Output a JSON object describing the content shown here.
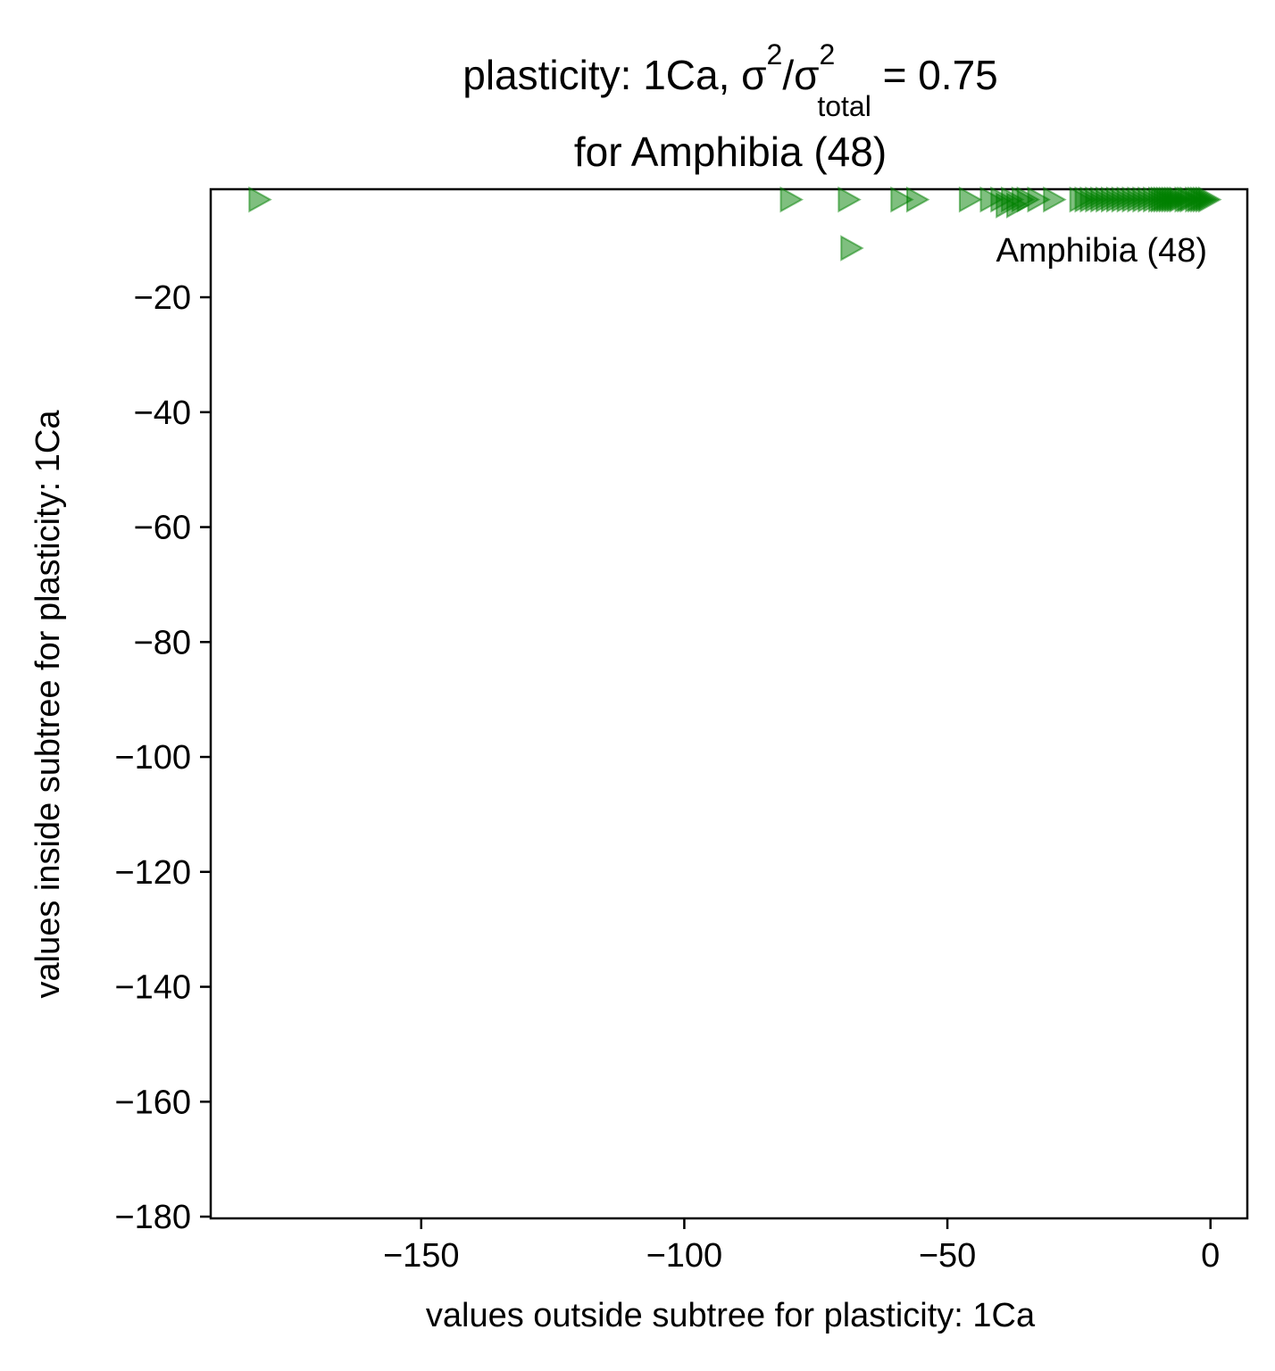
{
  "chart_data": {
    "type": "scatter",
    "title": {
      "line1_prefix": "plasticity: 1Ca, σ",
      "sup1": "2",
      "mid": "/σ",
      "sup2": "2",
      "sub": "total",
      "suffix": " =  0.75",
      "line2": "for Amphibia (48)"
    },
    "xlabel": "values outside subtree for plasticity: 1Ca",
    "ylabel": "values inside subtree for plasticity: 1Ca",
    "xlim": [
      -190,
      7
    ],
    "ylim": [
      -180.3,
      -1.2
    ],
    "xticks": [
      -150,
      -100,
      -50,
      0
    ],
    "xtick_labels": [
      "−150",
      "−100",
      "−50",
      "0"
    ],
    "yticks": [
      -20,
      -40,
      -60,
      -80,
      -100,
      -120,
      -140,
      -160,
      -180
    ],
    "ytick_labels": [
      "−20",
      "−40",
      "−60",
      "−80",
      "−100",
      "−120",
      "−140",
      "−160",
      "−180"
    ],
    "grid": false,
    "legend": {
      "position": "top-right",
      "entries": [
        "Amphibia (48)"
      ]
    },
    "series": [
      {
        "name": "Amphibia (48)",
        "marker": "triangle-right",
        "color": "#008000",
        "alpha": 0.5,
        "x": [
          -181,
          -80,
          -69,
          -59,
          -56,
          -46,
          -42,
          -40,
          -39,
          -38,
          -37,
          -36,
          -35,
          -33,
          -30,
          -25,
          -24,
          -23,
          -22,
          -21,
          -20,
          -19,
          -18,
          -17,
          -16,
          -15,
          -14,
          -13,
          -12,
          -11,
          -10,
          -9.5,
          -9,
          -8.5,
          -8,
          -7.5,
          -7,
          -6.5,
          -6,
          -5,
          -4.5,
          -4,
          -3,
          -2.5,
          -2,
          -1.5,
          -1,
          -0.5
        ],
        "y": [
          -3,
          -3,
          -3,
          -3,
          -3,
          -3,
          -3,
          -3,
          -4,
          -3,
          -4,
          -3,
          -3,
          -3,
          -3,
          -3,
          -3,
          -3,
          -3,
          -3,
          -3,
          -3,
          -3,
          -3,
          -3,
          -3,
          -3,
          -3,
          -3,
          -3,
          -3,
          -3,
          -3,
          -3,
          -3,
          -3,
          -3,
          -3,
          -3,
          -3,
          -3,
          -3,
          -3,
          -3,
          -3,
          -3,
          -3,
          -3
        ]
      }
    ]
  }
}
